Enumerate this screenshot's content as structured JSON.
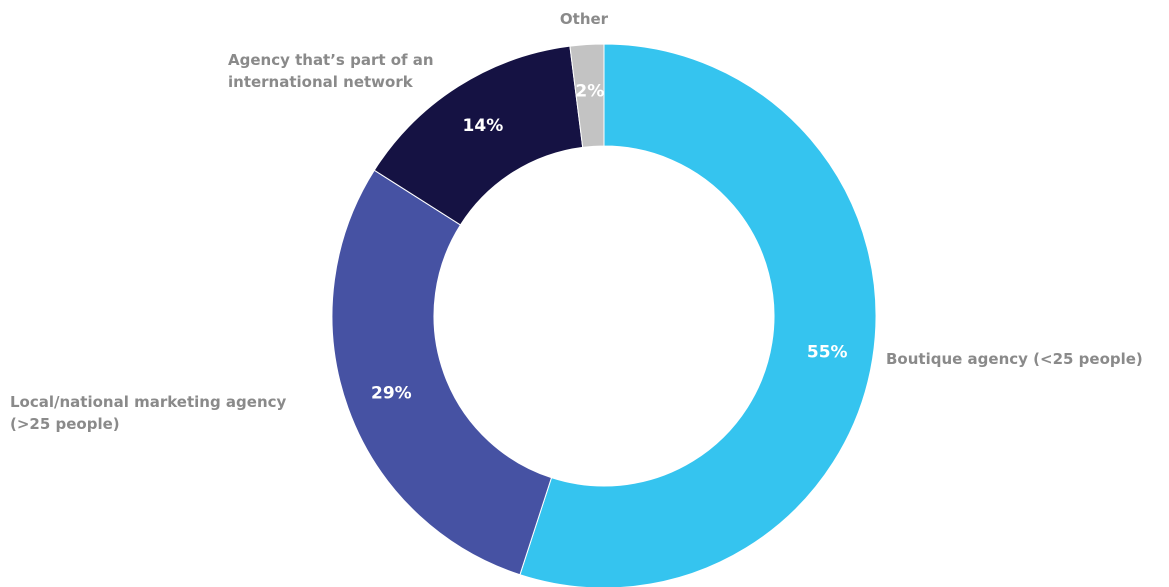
{
  "chart_data": {
    "type": "pie",
    "donut": true,
    "legend": "none",
    "slices": [
      {
        "label": "Boutique agency (<25 people)",
        "value": 55,
        "value_label": "55%",
        "color": "#35c4ef"
      },
      {
        "label": "Local/national marketing agency (>25 people)",
        "value": 29,
        "value_label": "29%",
        "color": "#4652a3"
      },
      {
        "label": "Agency that’s part of an international network",
        "value": 14,
        "value_label": "14%",
        "color": "#151243"
      },
      {
        "label": "Other",
        "value": 2,
        "value_label": "2%",
        "color": "#c3c3c3"
      }
    ]
  }
}
